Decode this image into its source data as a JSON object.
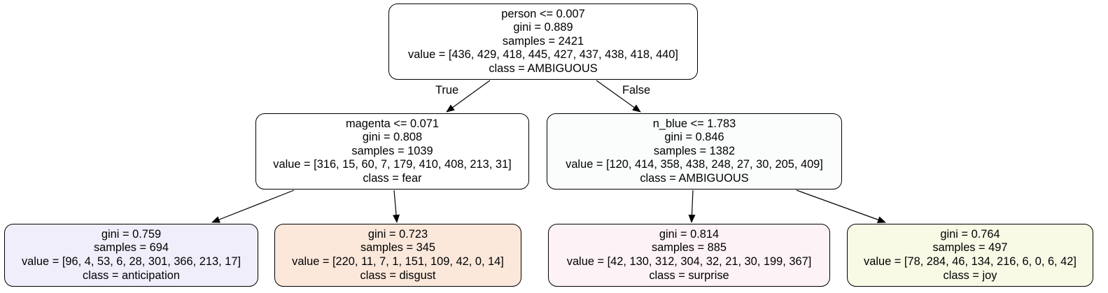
{
  "tree": {
    "edge_labels": {
      "true_label": "True",
      "false_label": "False"
    },
    "nodes": [
      {
        "id": 0,
        "fill": "#ffffff",
        "lines": [
          "person <= 0.007",
          "gini = 0.889",
          "samples = 2421",
          "value = [436, 429, 418, 445, 427, 437, 438, 418, 440]",
          "class = AMBIGUOUS"
        ]
      },
      {
        "id": 1,
        "fill": "#ffffff",
        "lines": [
          "magenta <= 0.071",
          "gini = 0.808",
          "samples = 1039",
          "value = [316, 15, 60, 7, 179, 410, 408, 213, 31]",
          "class = fear"
        ]
      },
      {
        "id": 2,
        "fill": "#fafdfb",
        "lines": [
          "n_blue <= 1.783",
          "gini = 0.846",
          "samples = 1382",
          "value = [120, 414, 358, 438, 248, 27, 30, 205, 409]",
          "class = AMBIGUOUS"
        ]
      },
      {
        "id": 3,
        "fill": "#f1eefb",
        "lines": [
          "gini = 0.759",
          "samples = 694",
          "value = [96, 4, 53, 6, 28, 301, 366, 213, 17]",
          "class = anticipation"
        ]
      },
      {
        "id": 4,
        "fill": "#fbe8db",
        "lines": [
          "gini = 0.723",
          "samples = 345",
          "value = [220, 11, 7, 1, 151, 109, 42, 0, 14]",
          "class = disgust"
        ]
      },
      {
        "id": 5,
        "fill": "#fdf2f6",
        "lines": [
          "gini = 0.814",
          "samples = 885",
          "value = [42, 130, 312, 304, 32, 21, 30, 199, 367]",
          "class = surprise"
        ]
      },
      {
        "id": 6,
        "fill": "#f8fae6",
        "lines": [
          "gini = 0.764",
          "samples = 497",
          "value = [78, 284, 46, 134, 216, 6, 0, 6, 42]",
          "class = joy"
        ]
      }
    ],
    "edges": [
      {
        "from": 0,
        "to": 1
      },
      {
        "from": 0,
        "to": 2
      },
      {
        "from": 1,
        "to": 3
      },
      {
        "from": 1,
        "to": 4
      },
      {
        "from": 2,
        "to": 5
      },
      {
        "from": 2,
        "to": 6
      }
    ]
  }
}
